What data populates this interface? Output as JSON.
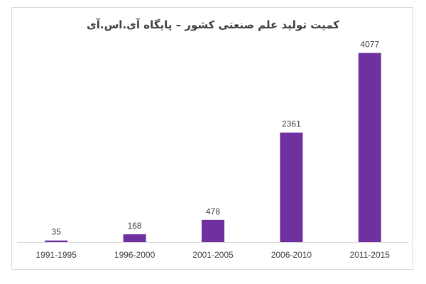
{
  "chart_data": {
    "type": "bar",
    "title": "کمیت تولید علم صنعتی کشور – پایگاه آی.اس.آی",
    "xlabel": "",
    "ylabel": "",
    "categories": [
      "1991-1995",
      "1996-2000",
      "2001-2005",
      "2006-2010",
      "2011-2015"
    ],
    "values": [
      35,
      168,
      478,
      2361,
      4077
    ],
    "ylim": [
      0,
      4300
    ],
    "grid": false,
    "legend": "none",
    "bar_color": "#7030a0",
    "axis_color": "#d9d9d9",
    "text_color": "#404040"
  }
}
